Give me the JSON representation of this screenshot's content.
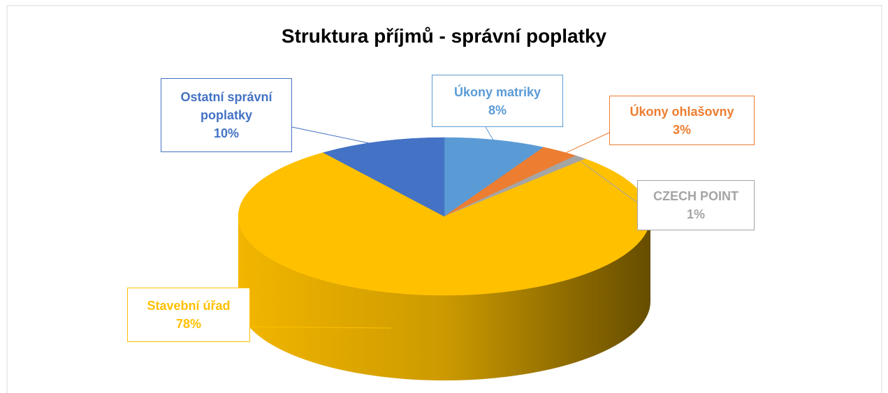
{
  "chart_data": {
    "type": "pie",
    "title": "Struktura příjmů - správní poplatky",
    "categories": [
      "Úkony matriky",
      "Úkony ohlašovny",
      "CZECH POINT",
      "Stavební úřad",
      "Ostatní správní poplatky"
    ],
    "values": [
      8,
      3,
      1,
      78,
      10
    ],
    "value_labels": [
      "8%",
      "3%",
      "1%",
      "78%",
      "10%"
    ],
    "colors": [
      "#5b9bd5",
      "#ed7d31",
      "#a5a5a5",
      "#ffc000",
      "#4472c4"
    ]
  }
}
